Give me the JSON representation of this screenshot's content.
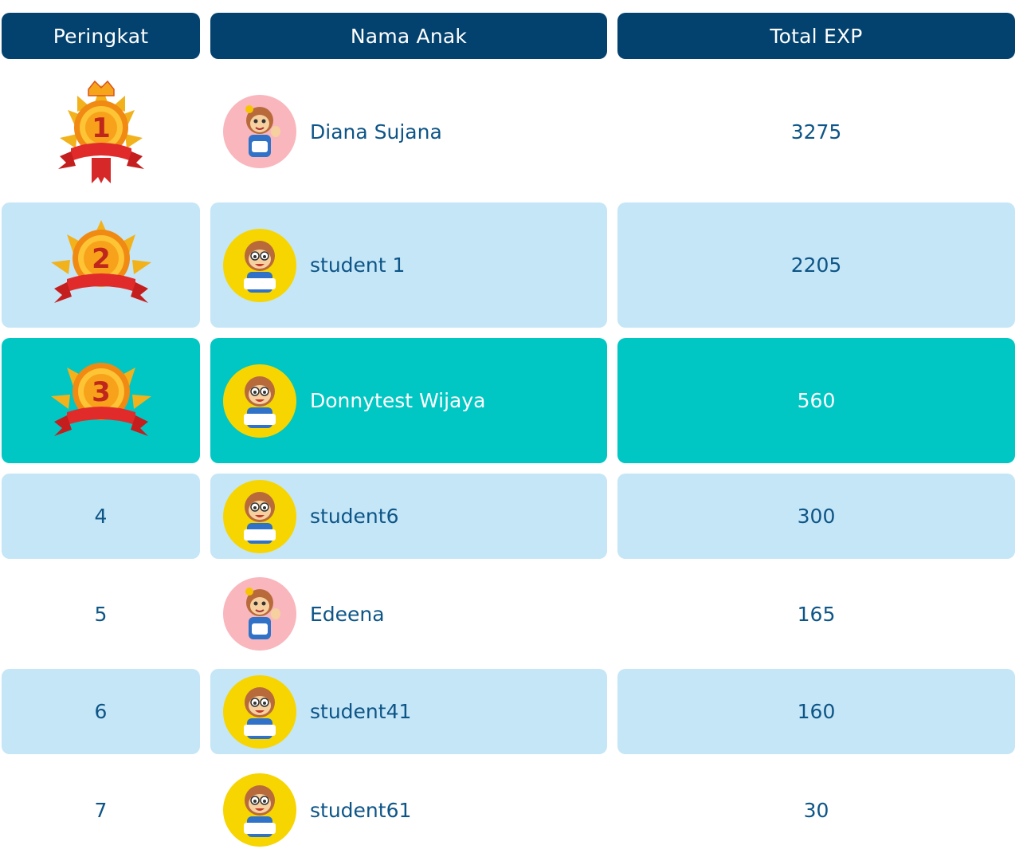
{
  "header": {
    "rank_label": "Peringkat",
    "name_label": "Nama Anak",
    "exp_label": "Total EXP"
  },
  "rows": [
    {
      "rank": "1",
      "name": "Diana Sujana",
      "exp": "3275",
      "avatar": "girl-monkey-avatar",
      "medal": "gold-medal-1",
      "style": "plain"
    },
    {
      "rank": "2",
      "name": "student 1",
      "exp": "2205",
      "avatar": "boy-monkey-avatar",
      "medal": "gold-medal-2",
      "style": "light"
    },
    {
      "rank": "3",
      "name": "Donnytest Wijaya",
      "exp": "560",
      "avatar": "boy-monkey-avatar",
      "medal": "gold-medal-3",
      "style": "highlight"
    },
    {
      "rank": "4",
      "name": "student6",
      "exp": "300",
      "avatar": "boy-monkey-avatar",
      "style": "light"
    },
    {
      "rank": "5",
      "name": "Edeena",
      "exp": "165",
      "avatar": "girl-monkey-avatar",
      "style": "plain"
    },
    {
      "rank": "6",
      "name": "student41",
      "exp": "160",
      "avatar": "boy-monkey-avatar",
      "style": "light"
    },
    {
      "rank": "7",
      "name": "student61",
      "exp": "30",
      "avatar": "boy-monkey-avatar",
      "style": "plain"
    }
  ],
  "colors": {
    "header_bg": "#03426f",
    "row_light": "#c5e6f7",
    "row_highlight": "#00c7c3",
    "text": "#0d5587",
    "avatar_girl_bg": "#f9b6bd",
    "avatar_boy_bg": "#f7d500"
  }
}
